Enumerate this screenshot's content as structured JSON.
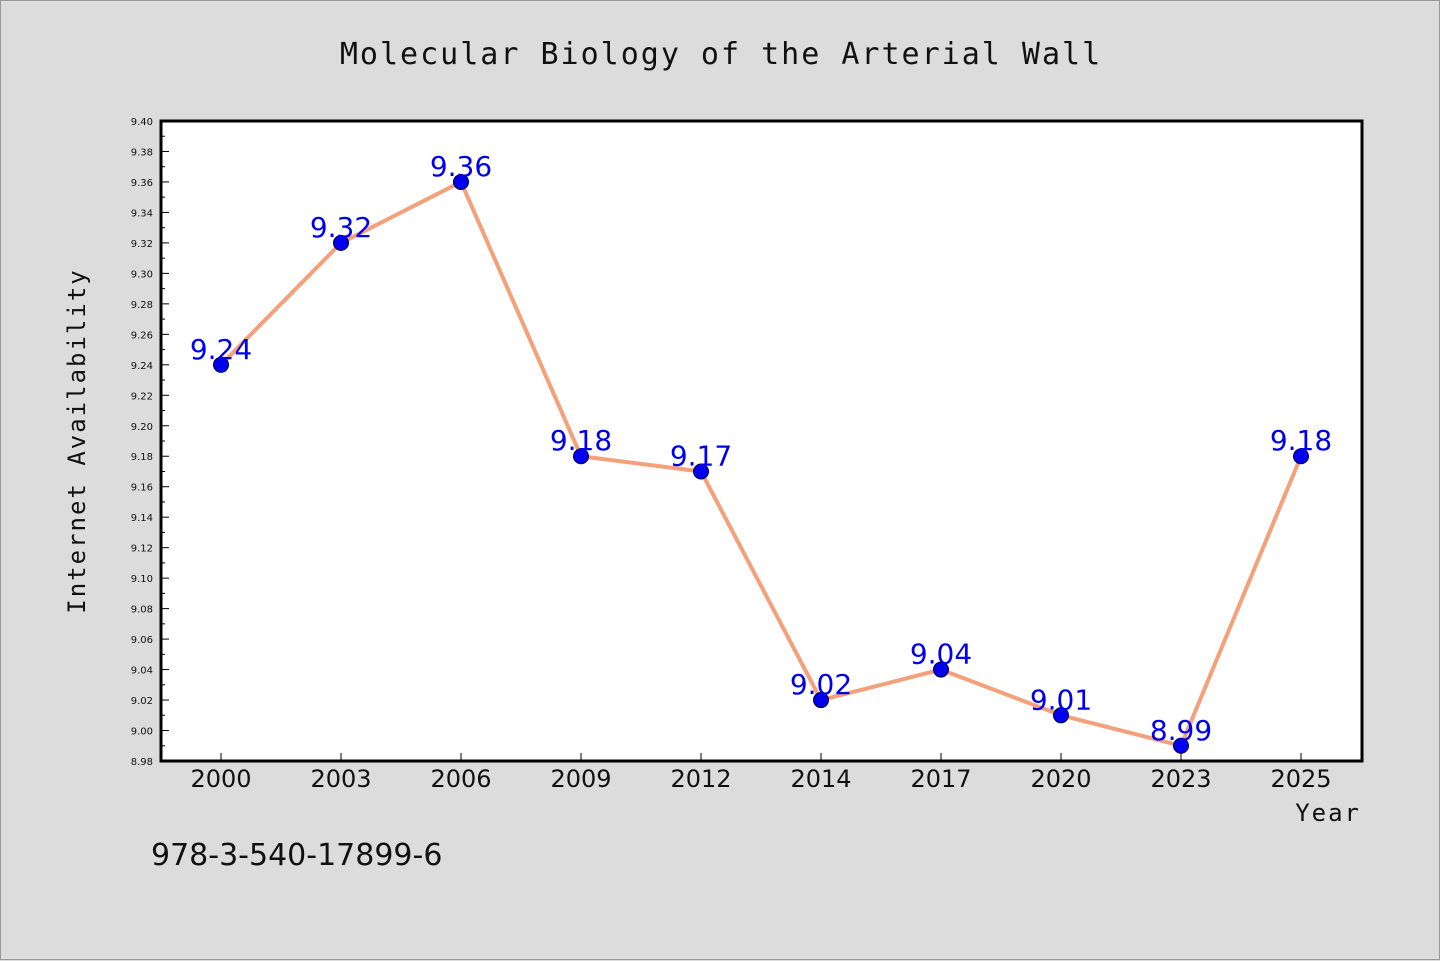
{
  "chart_data": {
    "type": "line",
    "title": "Molecular Biology of the Arterial Wall",
    "xlabel": "Year",
    "ylabel": "Internet Availability",
    "categories": [
      "2000",
      "2003",
      "2006",
      "2009",
      "2012",
      "2014",
      "2017",
      "2020",
      "2023",
      "2025"
    ],
    "series": [
      {
        "values": [
          9.24,
          9.32,
          9.36,
          9.18,
          9.17,
          9.02,
          9.04,
          9.01,
          8.99,
          9.18
        ]
      }
    ],
    "ylim": [
      8.98,
      9.4
    ],
    "ytick_step": 0.02,
    "grid": false,
    "legend": "none",
    "data_labels": true,
    "colors": {
      "line": "#f4a07a",
      "marker": "#0000ee",
      "marker_edge": "#000033",
      "data_label": "#0000ee",
      "plot_bg": "#ffffff",
      "page_bg": "#dcdcdc"
    },
    "footnote": "978-3-540-17899-6"
  }
}
